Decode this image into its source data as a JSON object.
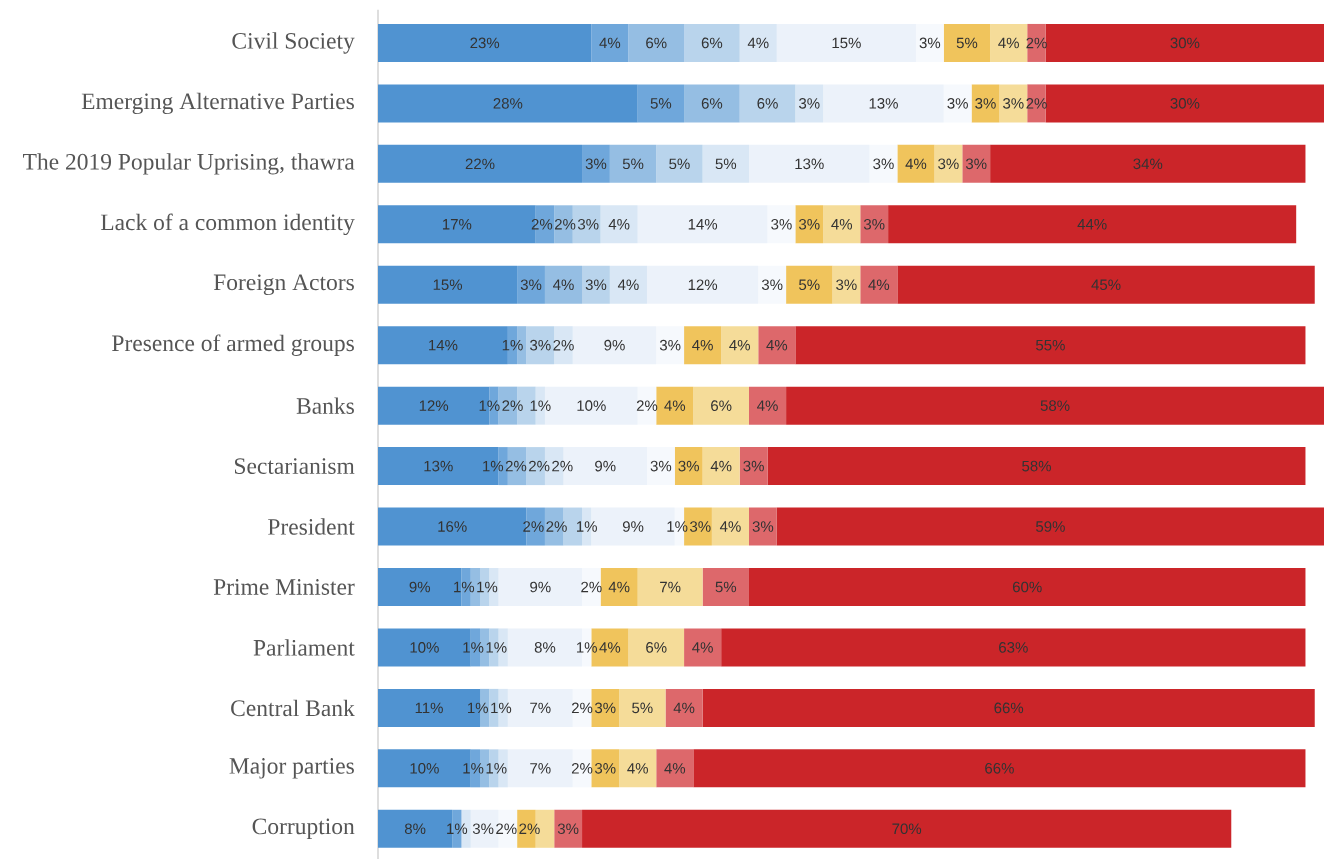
{
  "chart_data": {
    "type": "bar",
    "orientation": "horizontal",
    "stacked": true,
    "tick_labels": "y",
    "xlim": [
      0,
      102
    ],
    "categories": [
      "Civil Society",
      "Emerging Alternative Parties",
      "The 2019 Popular Uprising, thawra",
      "Lack of a common identity",
      "Foreign Actors",
      "Presence of armed groups",
      "Banks",
      "Sectarianism",
      "President",
      "Prime Minister",
      "Parliament",
      "Central Bank",
      "Major parties",
      "Corruption"
    ],
    "series": [
      {
        "color": "#5093d1",
        "values": [
          23,
          28,
          22,
          17,
          15,
          14,
          12,
          13,
          16,
          9,
          10,
          11,
          10,
          8
        ],
        "value_labels": [
          "23%",
          "28%",
          "22%",
          "17%",
          "15%",
          "14%",
          "12%",
          "13%",
          "16%",
          "9%",
          "10%",
          "11%",
          "10%",
          "8%"
        ]
      },
      {
        "color": "#6fa7db",
        "values": [
          4,
          5,
          3,
          2,
          3,
          1,
          1,
          1,
          2,
          1,
          1,
          null,
          1,
          1
        ],
        "value_labels": [
          "4%",
          "5%",
          "3%",
          "2%",
          "3%",
          "1%",
          "1%",
          "1%",
          "2%",
          "1%",
          "1%",
          null,
          "1%",
          "1%"
        ]
      },
      {
        "color": "#95bee3",
        "values": [
          6,
          6,
          5,
          2,
          4,
          1,
          2,
          2,
          2,
          1,
          1,
          1,
          1,
          null
        ],
        "value_labels": [
          "6%",
          "6%",
          "5%",
          "2%",
          "4%",
          null,
          "2%",
          "2%",
          "2%",
          null,
          null,
          "1%",
          null,
          null
        ]
      },
      {
        "color": "#b9d4ec",
        "values": [
          6,
          6,
          5,
          3,
          3,
          3,
          2,
          2,
          2,
          1,
          1,
          1,
          1,
          null
        ],
        "value_labels": [
          "6%",
          "6%",
          "5%",
          "3%",
          "3%",
          "3%",
          null,
          "2%",
          null,
          "1%",
          "1%",
          "1%",
          "1%",
          null
        ]
      },
      {
        "color": "#d9e7f5",
        "values": [
          4,
          3,
          5,
          4,
          4,
          2,
          1,
          2,
          1,
          1,
          1,
          1,
          1,
          1
        ],
        "value_labels": [
          "4%",
          "3%",
          "5%",
          "4%",
          "4%",
          "2%",
          "1%",
          "2%",
          "1%",
          null,
          null,
          null,
          null,
          null
        ]
      },
      {
        "color": "#ecf2fa",
        "values": [
          15,
          13,
          13,
          14,
          12,
          9,
          10,
          9,
          9,
          9,
          8,
          7,
          7,
          3
        ],
        "value_labels": [
          "15%",
          "13%",
          "13%",
          "14%",
          "12%",
          "9%",
          "10%",
          "9%",
          "9%",
          "9%",
          "8%",
          "7%",
          "7%",
          "3%"
        ]
      },
      {
        "color": "#f6f9fd",
        "values": [
          3,
          3,
          3,
          3,
          3,
          3,
          2,
          3,
          1,
          2,
          1,
          2,
          2,
          2
        ],
        "value_labels": [
          "3%",
          "3%",
          "3%",
          "3%",
          "3%",
          "3%",
          "2%",
          "3%",
          "1%",
          "2%",
          "1%",
          "2%",
          "2%",
          "2%"
        ]
      },
      {
        "color": "#f0c45c",
        "values": [
          5,
          3,
          4,
          3,
          5,
          4,
          4,
          3,
          3,
          4,
          4,
          3,
          3,
          2
        ],
        "value_labels": [
          "5%",
          "3%",
          "4%",
          "3%",
          "5%",
          "4%",
          "4%",
          "3%",
          "3%",
          "4%",
          "4%",
          "3%",
          "3%",
          "2%"
        ]
      },
      {
        "color": "#f5dc99",
        "values": [
          4,
          3,
          3,
          4,
          3,
          4,
          6,
          4,
          4,
          7,
          6,
          5,
          4,
          2
        ],
        "value_labels": [
          "4%",
          "3%",
          "3%",
          "4%",
          "3%",
          "4%",
          "6%",
          "4%",
          "4%",
          "7%",
          "6%",
          "5%",
          "4%",
          null
        ]
      },
      {
        "color": "#dd686b",
        "values": [
          2,
          2,
          3,
          3,
          4,
          4,
          4,
          3,
          3,
          5,
          4,
          4,
          4,
          3
        ],
        "value_labels": [
          "2%",
          "2%",
          "3%",
          "3%",
          "4%",
          "4%",
          "4%",
          "3%",
          "3%",
          "5%",
          "4%",
          "4%",
          "4%",
          "3%"
        ]
      },
      {
        "color": "#cb2529",
        "values": [
          30,
          30,
          34,
          44,
          45,
          55,
          58,
          58,
          59,
          60,
          63,
          66,
          66,
          70
        ],
        "value_labels": [
          "30%",
          "30%",
          "34%",
          "44%",
          "45%",
          "55%",
          "58%",
          "58%",
          "59%",
          "60%",
          "63%",
          "66%",
          "66%",
          "70%"
        ]
      }
    ]
  }
}
